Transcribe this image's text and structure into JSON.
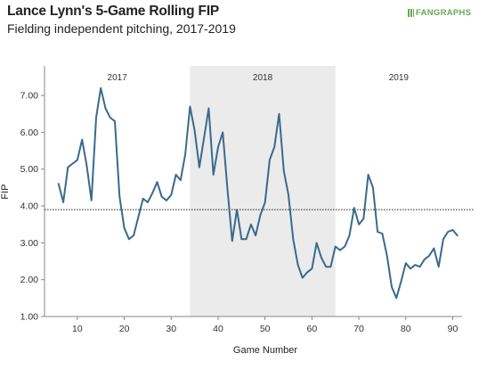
{
  "header": {
    "title": "Lance Lynn's 5-Game Rolling FIP",
    "subtitle": "Fielding independent pitching, 2017-2019",
    "logo_text": "FANGRAPHS"
  },
  "colors": {
    "line": "#3a6a8e",
    "shade": "#ebebeb",
    "reference": "#222222"
  },
  "chart_data": {
    "type": "line",
    "title": "Lance Lynn's 5-Game Rolling FIP",
    "subtitle": "Fielding independent pitching, 2017-2019",
    "xlabel": "Game Number",
    "ylabel": "FIP",
    "xlim": [
      3,
      92
    ],
    "ylim": [
      1.0,
      7.8
    ],
    "xticks": [
      10,
      20,
      30,
      40,
      50,
      60,
      70,
      80,
      90
    ],
    "yticks": [
      "1.00",
      "2.00",
      "3.00",
      "4.00",
      "5.00",
      "6.00",
      "7.00"
    ],
    "ytick_values": [
      1,
      2,
      3,
      4,
      5,
      6,
      7
    ],
    "reference_line": 3.9,
    "season_bands": [
      {
        "label": "2017",
        "start": 3,
        "end": 34,
        "shaded": false
      },
      {
        "label": "2018",
        "start": 34,
        "end": 65,
        "shaded": true
      },
      {
        "label": "2019",
        "start": 65,
        "end": 92,
        "shaded": false
      }
    ],
    "series": [
      {
        "x": [
          6,
          7,
          8,
          9,
          10,
          11,
          12,
          13,
          14,
          15,
          16,
          17,
          18,
          19,
          20,
          21,
          22,
          23,
          24,
          25,
          26,
          27,
          28,
          29,
          30,
          31,
          32,
          33,
          34,
          35,
          36,
          37,
          38,
          39,
          40,
          41,
          42,
          43,
          44,
          45,
          46,
          47,
          48,
          49,
          50,
          51,
          52,
          53,
          54,
          55,
          56,
          57,
          58,
          59,
          60,
          61,
          62,
          63,
          64,
          65,
          66,
          67,
          68,
          69,
          70,
          71,
          72,
          73,
          74,
          75,
          76,
          77,
          78,
          79,
          80,
          81,
          82,
          83,
          84,
          85,
          86,
          87,
          88,
          89,
          90,
          91
        ],
        "y": [
          4.6,
          4.1,
          5.05,
          5.15,
          5.25,
          5.8,
          5.1,
          4.15,
          6.4,
          7.2,
          6.65,
          6.4,
          6.3,
          4.25,
          3.4,
          3.1,
          3.2,
          3.7,
          4.2,
          4.1,
          4.35,
          4.65,
          4.25,
          4.15,
          4.3,
          4.85,
          4.7,
          5.4,
          6.7,
          6.05,
          5.05,
          5.85,
          6.65,
          4.85,
          5.6,
          6.0,
          4.45,
          3.05,
          3.9,
          3.1,
          3.1,
          3.5,
          3.2,
          3.75,
          4.1,
          5.25,
          5.6,
          6.5,
          4.95,
          4.3,
          3.1,
          2.4,
          2.05,
          2.2,
          2.3,
          3.0,
          2.6,
          2.35,
          2.35,
          2.9,
          2.8,
          2.9,
          3.2,
          3.95,
          3.5,
          3.65,
          4.85,
          4.5,
          3.3,
          3.25,
          2.65,
          1.8,
          1.5,
          1.95,
          2.45,
          2.3,
          2.4,
          2.35,
          2.55,
          2.65,
          2.85,
          2.35,
          3.1,
          3.3,
          3.35,
          3.2
        ]
      }
    ],
    "grid": false,
    "legend": "none"
  }
}
